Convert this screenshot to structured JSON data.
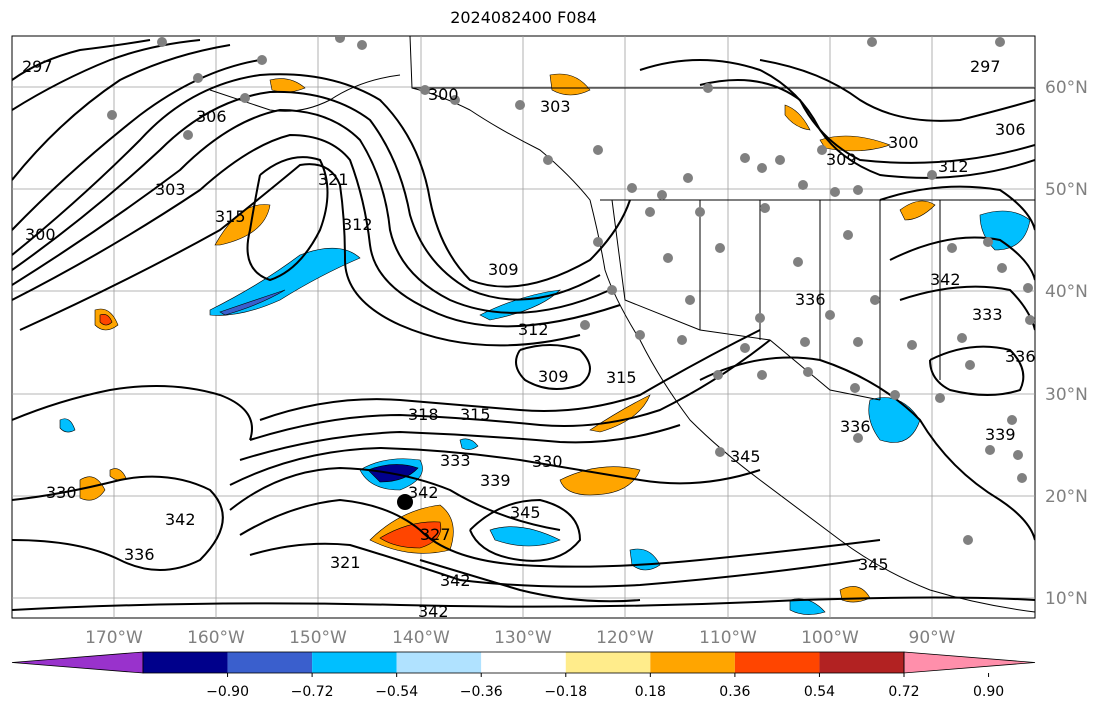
{
  "title": "2024082400 F084",
  "lat_labels": [
    "60°N",
    "50°N",
    "40°N",
    "30°N",
    "20°N",
    "10°N"
  ],
  "lon_labels": [
    "170°W",
    "160°W",
    "150°W",
    "140°W",
    "130°W",
    "120°W",
    "110°W",
    "100°W",
    "90°W"
  ],
  "colorbar": {
    "ticks": [
      "−0.90",
      "−0.72",
      "−0.54",
      "−0.36",
      "−0.18",
      "0.18",
      "0.36",
      "0.54",
      "0.72",
      "0.90"
    ],
    "colors": [
      "#9932cc",
      "#00008b",
      "#3a5fcd",
      "#00bfff",
      "#b0e2ff",
      "#ffffff",
      "#ffec8b",
      "#ffa500",
      "#ff4500",
      "#b22222",
      "#ff8fab"
    ]
  },
  "contour_labels": [
    "297",
    "306",
    "303",
    "300",
    "315",
    "321",
    "312",
    "309",
    "303",
    "300",
    "312",
    "309",
    "315",
    "318",
    "315",
    "333",
    "339",
    "330",
    "342",
    "345",
    "327",
    "321",
    "342",
    "342",
    "336",
    "330",
    "342",
    "297",
    "306",
    "300",
    "309",
    "312",
    "336",
    "342",
    "333",
    "336",
    "336",
    "339",
    "345",
    "345"
  ]
}
